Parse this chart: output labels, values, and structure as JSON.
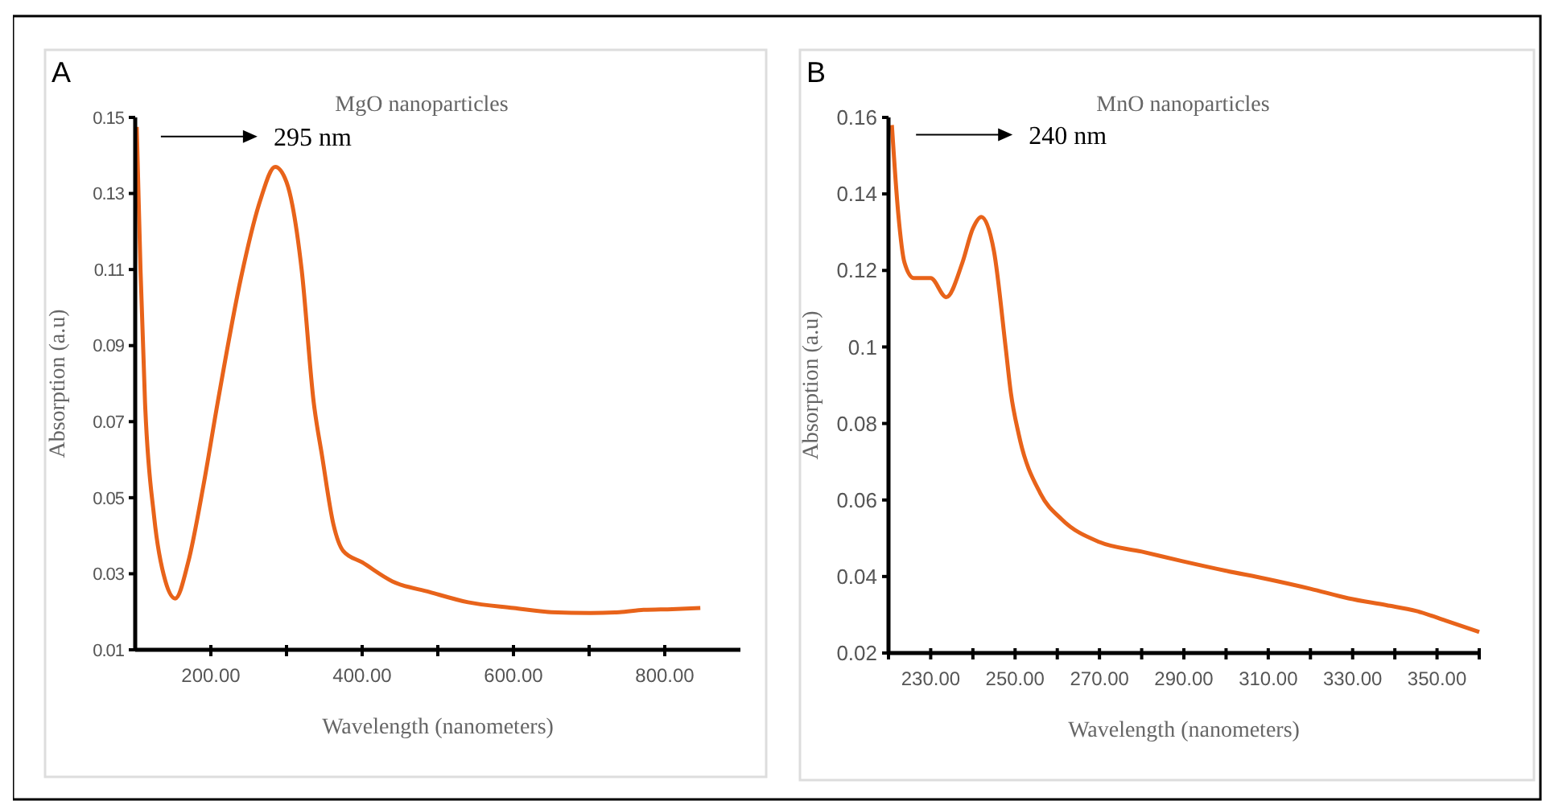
{
  "chart_data": [
    {
      "type": "line",
      "title": "MgO nanoparticles",
      "xlabel": "Wavelength (nanometers)",
      "ylabel": "Absorption (a.u)",
      "annotations": [
        "A",
        "295 nm"
      ],
      "xlim": [
        100,
        900
      ],
      "xticks": [
        {
          "value": 200,
          "label": "200.00"
        },
        {
          "value": 300,
          "label": null
        },
        {
          "value": 400,
          "label": "400.00"
        },
        {
          "value": 500,
          "label": null
        },
        {
          "value": 600,
          "label": "600.00"
        },
        {
          "value": 700,
          "label": null
        },
        {
          "value": 800,
          "label": "800.00"
        }
      ],
      "ylim": [
        0.01,
        0.15
      ],
      "yticks": [
        0.01,
        0.03,
        0.05,
        0.07,
        0.09,
        0.11,
        0.13,
        0.15
      ],
      "grid": false,
      "marker": "none",
      "line_style": "solid",
      "series": [
        {
          "color": "#e8631a",
          "x": [
            102,
            107,
            113,
            125,
            140,
            153,
            170,
            190,
            209,
            240,
            265,
            285,
            300,
            320,
            336,
            347,
            362,
            375,
            400,
            440,
            489,
            540,
            600,
            650,
            702,
            740,
            772,
            810,
            847
          ],
          "values": [
            0.1475,
            0.11,
            0.075,
            0.045,
            0.028,
            0.0235,
            0.033,
            0.053,
            0.075,
            0.108,
            0.128,
            0.137,
            0.133,
            0.11,
            0.075,
            0.061,
            0.043,
            0.036,
            0.033,
            0.028,
            0.0252,
            0.0225,
            0.021,
            0.0199,
            0.0197,
            0.0199,
            0.0205,
            0.0207,
            0.021
          ]
        }
      ]
    },
    {
      "type": "line",
      "title": "MnO nanoparticles",
      "xlabel": "Wavelength (nanometers)",
      "ylabel": "Absorption (a.u)",
      "annotations": [
        "B",
        "240 nm"
      ],
      "xlim": [
        220,
        360
      ],
      "xticks": [
        {
          "value": 220,
          "label": null
        },
        {
          "value": 230,
          "label": "230.00"
        },
        {
          "value": 240,
          "label": null
        },
        {
          "value": 250,
          "label": "250.00"
        },
        {
          "value": 260,
          "label": null
        },
        {
          "value": 270,
          "label": "270.00"
        },
        {
          "value": 280,
          "label": null
        },
        {
          "value": 290,
          "label": "290.00"
        },
        {
          "value": 300,
          "label": null
        },
        {
          "value": 310,
          "label": "310.00"
        },
        {
          "value": 320,
          "label": null
        },
        {
          "value": 330,
          "label": "330.00"
        },
        {
          "value": 340,
          "label": null
        },
        {
          "value": 350,
          "label": "350.00"
        },
        {
          "value": 360,
          "label": null
        }
      ],
      "ylim": [
        0.02,
        0.16
      ],
      "yticks": [
        0.02,
        0.04,
        0.06,
        {
          "value": 0.08,
          "label": "0.08"
        },
        {
          "value": 0.1,
          "label": "0.1"
        },
        0.12,
        0.14,
        0.16
      ],
      "grid": false,
      "marker": "none",
      "line_style": "solid",
      "series": [
        {
          "color": "#e8631a",
          "x": [
            220.8,
            222.3,
            223.8,
            226,
            230,
            233.7,
            237.5,
            240,
            242,
            245,
            247.8,
            249,
            250.9,
            256,
            261,
            270,
            280,
            289.7,
            300,
            309.5,
            320,
            329,
            338,
            345,
            352,
            360
          ],
          "values": [
            0.158,
            0.135,
            0.122,
            0.118,
            0.118,
            0.113,
            0.122,
            0.131,
            0.134,
            0.125,
            0.0995,
            0.088,
            0.077,
            0.0617,
            0.055,
            0.049,
            0.0465,
            0.044,
            0.0415,
            0.0394,
            0.0368,
            0.0343,
            0.0325,
            0.031,
            0.0285,
            0.0255
          ]
        }
      ]
    }
  ]
}
